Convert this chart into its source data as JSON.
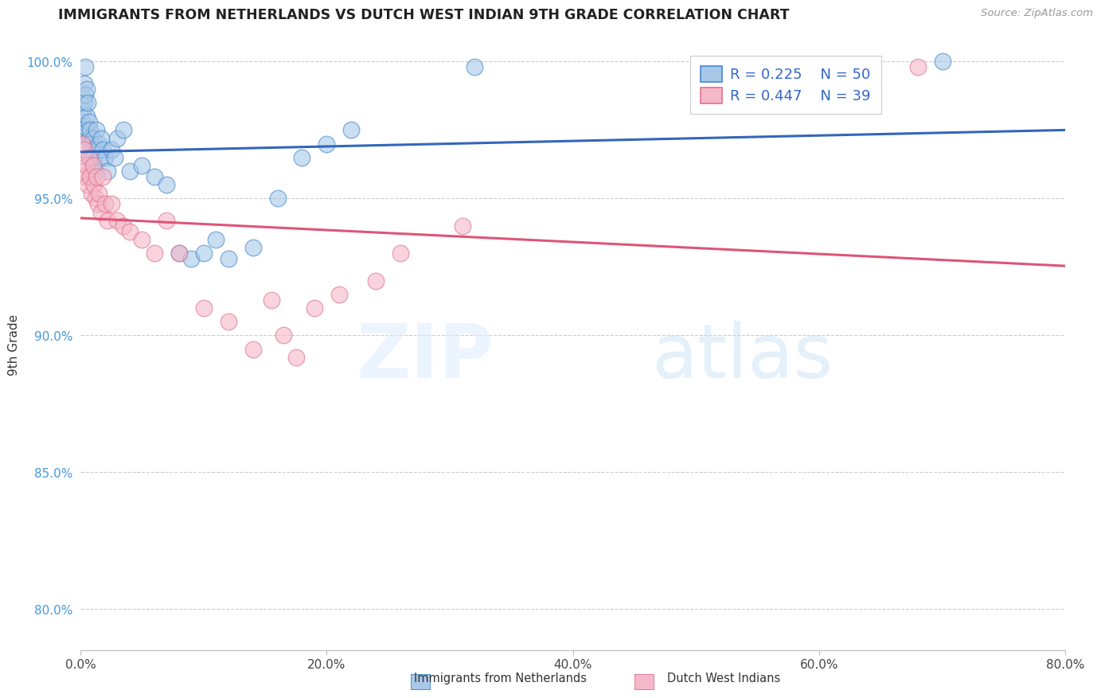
{
  "title": "IMMIGRANTS FROM NETHERLANDS VS DUTCH WEST INDIAN 9TH GRADE CORRELATION CHART",
  "source": "Source: ZipAtlas.com",
  "ylabel": "9th Grade",
  "xlim": [
    0.0,
    0.8
  ],
  "ylim": [
    0.785,
    1.008
  ],
  "ytick_positions": [
    0.8,
    0.85,
    0.9,
    0.95,
    1.0
  ],
  "xtick_positions": [
    0.0,
    0.2,
    0.4,
    0.6,
    0.8
  ],
  "blue_R": 0.225,
  "blue_N": 50,
  "pink_R": 0.447,
  "pink_N": 39,
  "blue_color": "#a8c8e8",
  "pink_color": "#f5b8c8",
  "blue_edge_color": "#4488cc",
  "pink_edge_color": "#e07090",
  "blue_line_color": "#3366bb",
  "pink_line_color": "#dd5577",
  "watermark_zip": "ZIP",
  "watermark_atlas": "atlas",
  "legend_label_blue": "Immigrants from Netherlands",
  "legend_label_pink": "Dutch West Indians",
  "blue_x": [
    0.001,
    0.002,
    0.002,
    0.003,
    0.003,
    0.004,
    0.004,
    0.005,
    0.005,
    0.006,
    0.006,
    0.007,
    0.007,
    0.008,
    0.008,
    0.009,
    0.009,
    0.01,
    0.01,
    0.011,
    0.011,
    0.012,
    0.013,
    0.014,
    0.015,
    0.016,
    0.017,
    0.018,
    0.02,
    0.022,
    0.025,
    0.028,
    0.03,
    0.035,
    0.04,
    0.05,
    0.06,
    0.07,
    0.08,
    0.09,
    0.1,
    0.11,
    0.12,
    0.14,
    0.16,
    0.18,
    0.2,
    0.22,
    0.32,
    0.7
  ],
  "blue_y": [
    0.978,
    0.982,
    0.975,
    0.985,
    0.992,
    0.988,
    0.998,
    0.99,
    0.98,
    0.985,
    0.975,
    0.978,
    0.972,
    0.975,
    0.97,
    0.968,
    0.965,
    0.972,
    0.965,
    0.968,
    0.962,
    0.96,
    0.975,
    0.968,
    0.97,
    0.965,
    0.972,
    0.968,
    0.965,
    0.96,
    0.968,
    0.965,
    0.972,
    0.975,
    0.96,
    0.962,
    0.958,
    0.955,
    0.93,
    0.928,
    0.93,
    0.935,
    0.928,
    0.932,
    0.95,
    0.965,
    0.97,
    0.975,
    0.998,
    1.0
  ],
  "pink_x": [
    0.001,
    0.002,
    0.003,
    0.004,
    0.005,
    0.006,
    0.007,
    0.008,
    0.009,
    0.01,
    0.011,
    0.012,
    0.013,
    0.014,
    0.015,
    0.017,
    0.018,
    0.02,
    0.022,
    0.025,
    0.03,
    0.035,
    0.04,
    0.05,
    0.06,
    0.07,
    0.08,
    0.1,
    0.12,
    0.14,
    0.155,
    0.165,
    0.175,
    0.19,
    0.21,
    0.24,
    0.26,
    0.31,
    0.68
  ],
  "pink_y": [
    0.97,
    0.96,
    0.968,
    0.958,
    0.962,
    0.955,
    0.965,
    0.958,
    0.952,
    0.962,
    0.955,
    0.95,
    0.958,
    0.948,
    0.952,
    0.945,
    0.958,
    0.948,
    0.942,
    0.948,
    0.942,
    0.94,
    0.938,
    0.935,
    0.93,
    0.942,
    0.93,
    0.91,
    0.905,
    0.895,
    0.913,
    0.9,
    0.892,
    0.91,
    0.915,
    0.92,
    0.93,
    0.94,
    0.998
  ]
}
